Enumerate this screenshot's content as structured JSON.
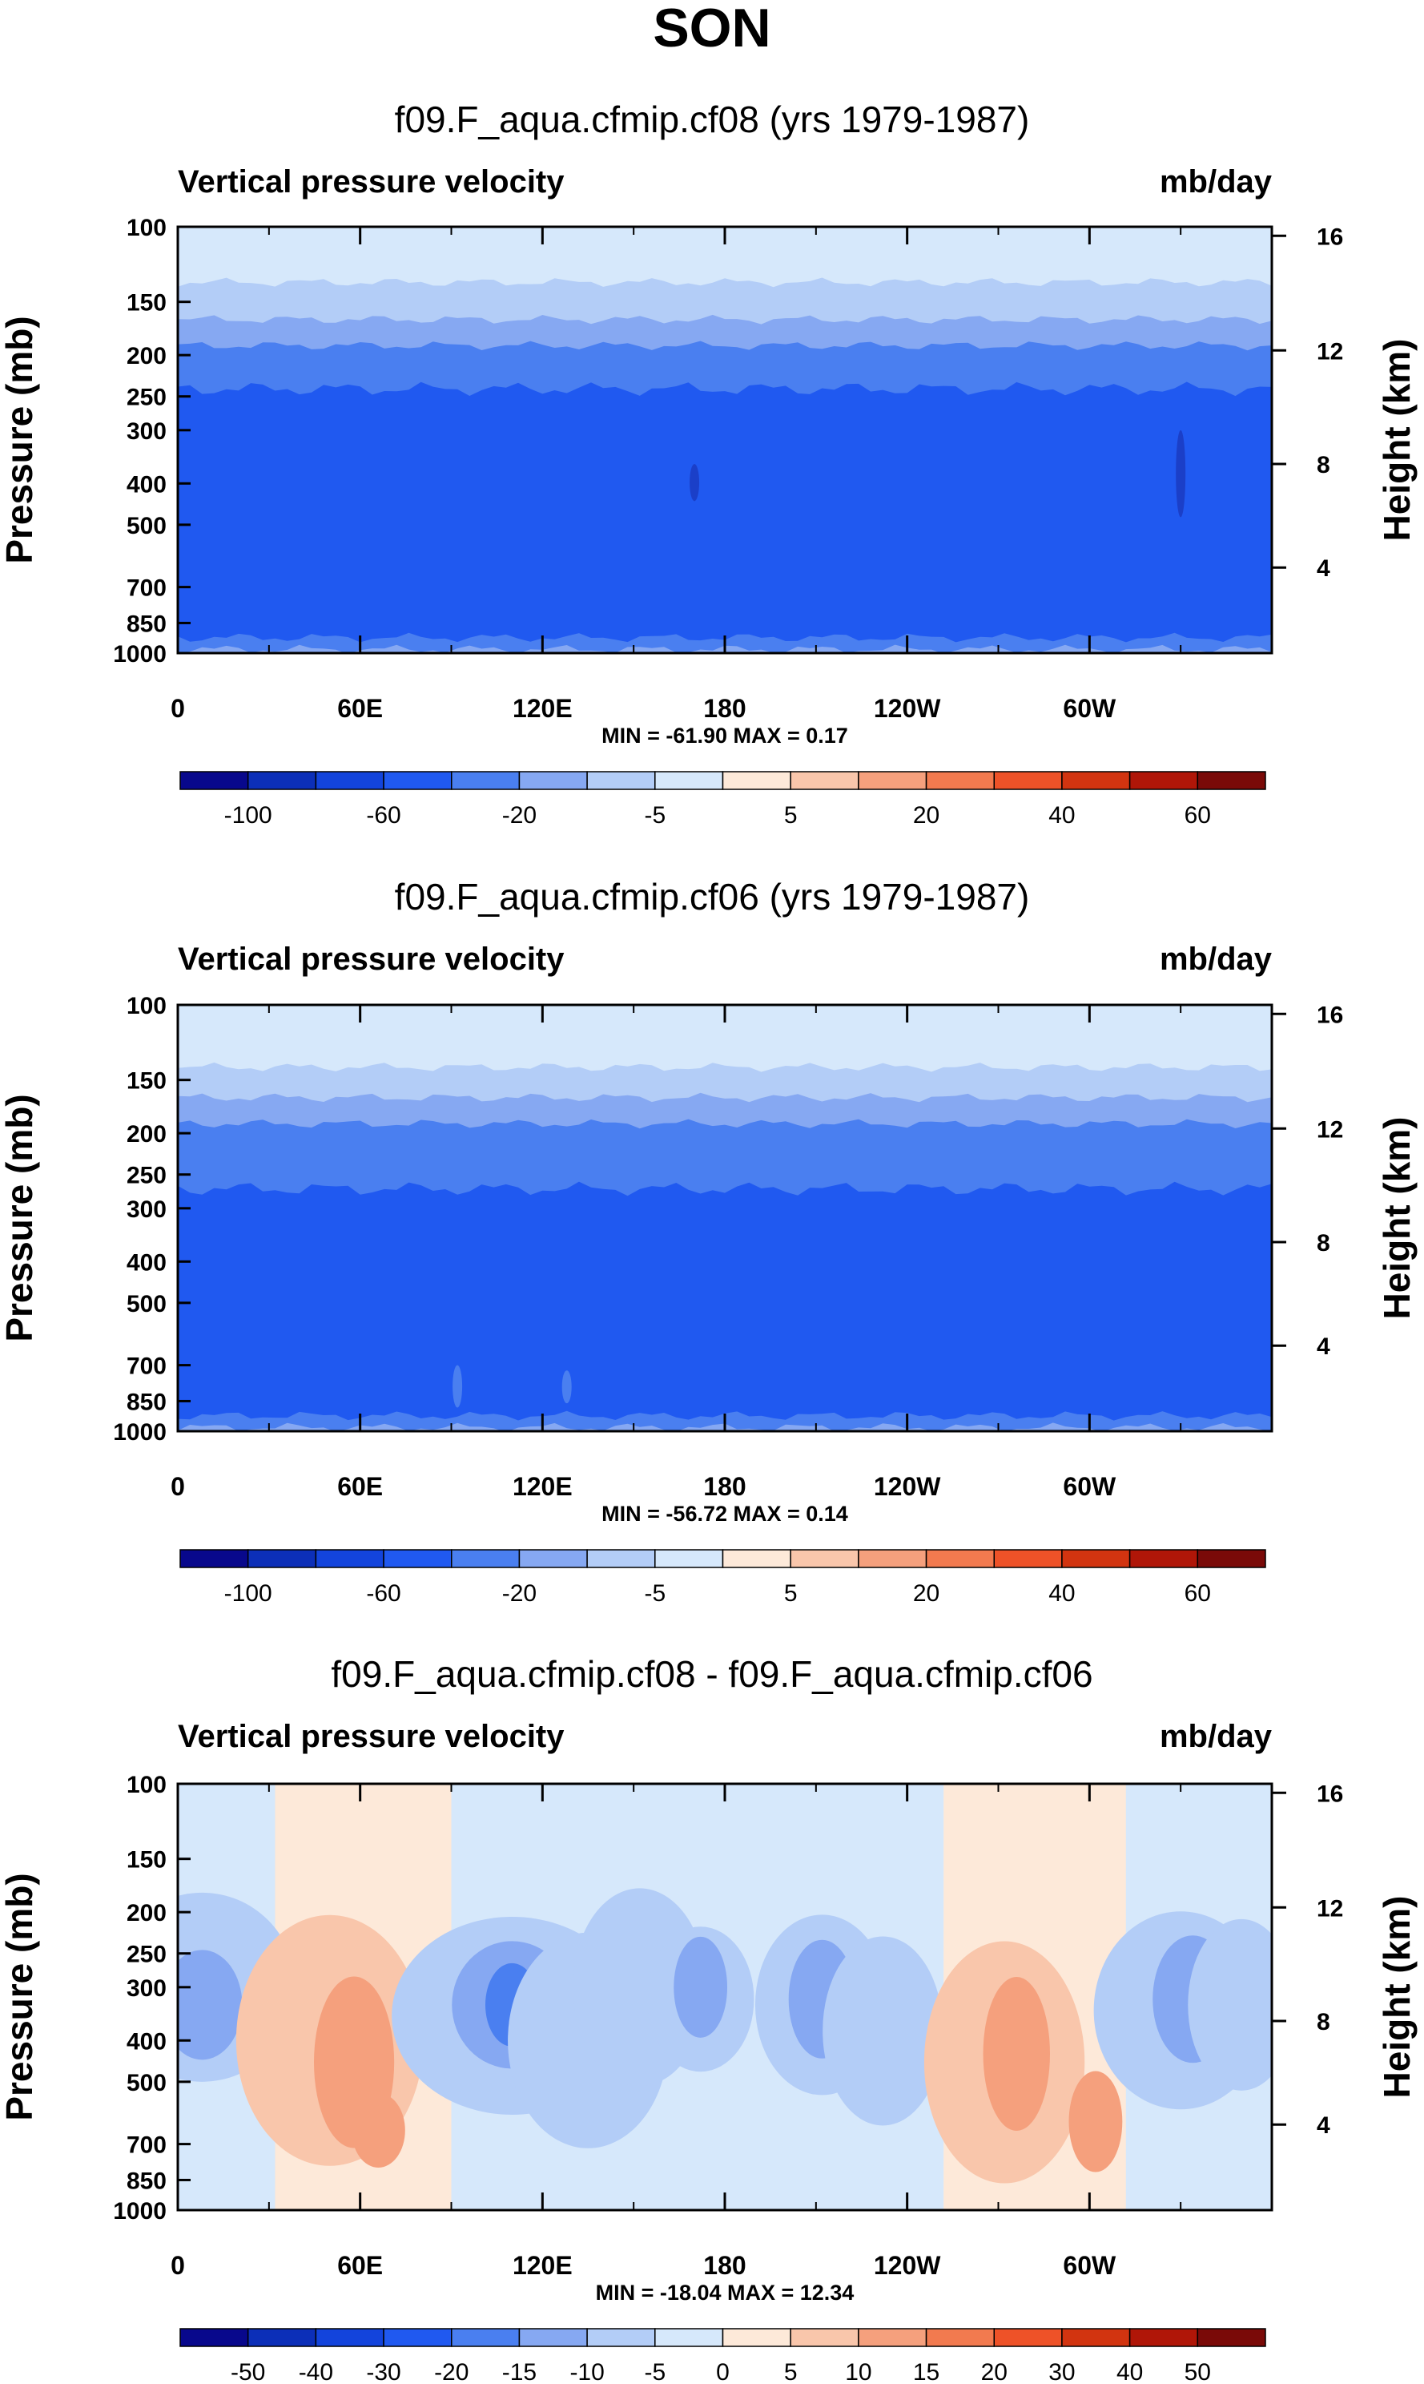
{
  "page_title": "SON",
  "chart_data": [
    {
      "type": "heatmap",
      "title": "f09.F_aqua.cfmip.cf08 (yrs 1979-1987)",
      "left_label": "Vertical pressure velocity",
      "right_label": "mb/day",
      "ylabel": "Pressure (mb)",
      "y2label": "Height (km)",
      "x_ticks": [
        "0",
        "60E",
        "120E",
        "180",
        "120W",
        "60W"
      ],
      "x_tick_values": [
        0,
        60,
        120,
        180,
        240,
        300
      ],
      "xlim": [
        0,
        360
      ],
      "y_ticks": [
        "100",
        "150",
        "200",
        "250",
        "300",
        "400",
        "500",
        "700",
        "850",
        "1000"
      ],
      "y_tick_values": [
        100,
        150,
        200,
        250,
        300,
        400,
        500,
        700,
        850,
        1000
      ],
      "ylim": [
        100,
        1000
      ],
      "y2_ticks": [
        "4",
        "8",
        "12",
        "16"
      ],
      "stats": "MIN = -61.90  MAX =   0.17",
      "colorbar_levels": [
        -100,
        -80,
        -60,
        -40,
        -20,
        -10,
        -5,
        0,
        5,
        10,
        20,
        30,
        40,
        50,
        60
      ],
      "colorbar_labels": [
        "-100",
        "-60",
        "-20",
        "-5",
        "5",
        "20",
        "40",
        "60"
      ],
      "colorbar_colors": [
        "#08088c",
        "#0c2fb8",
        "#1344dc",
        "#2059f0",
        "#4a7ff0",
        "#86a8f2",
        "#b3cdf7",
        "#d6e8fb",
        "#fde9d9",
        "#f9c6ab",
        "#f5a07d",
        "#f27a4f",
        "#ee5228",
        "#d23410",
        "#b01608",
        "#7a0a08"
      ],
      "layers": [
        {
          "p_top": 100,
          "p_bottom": 135,
          "value": "0 to -5"
        },
        {
          "p_top": 135,
          "p_bottom": 165,
          "value": "-5 to -10"
        },
        {
          "p_top": 165,
          "p_bottom": 190,
          "value": "-10 to -20"
        },
        {
          "p_top": 190,
          "p_bottom": 240,
          "value": "-20 to -40"
        },
        {
          "p_top": 240,
          "p_bottom": 920,
          "value": "-40 to -60"
        },
        {
          "p_top": 920,
          "p_bottom": 980,
          "value": "-20 to -40"
        },
        {
          "p_top": 980,
          "p_bottom": 1000,
          "value": "-10 to -20"
        }
      ]
    },
    {
      "type": "heatmap",
      "title": "f09.F_aqua.cfmip.cf06 (yrs 1979-1987)",
      "left_label": "Vertical pressure velocity",
      "right_label": "mb/day",
      "ylabel": "Pressure (mb)",
      "y2label": "Height (km)",
      "x_ticks": [
        "0",
        "60E",
        "120E",
        "180",
        "120W",
        "60W"
      ],
      "x_tick_values": [
        0,
        60,
        120,
        180,
        240,
        300
      ],
      "xlim": [
        0,
        360
      ],
      "y_ticks": [
        "100",
        "150",
        "200",
        "250",
        "300",
        "400",
        "500",
        "700",
        "850",
        "1000"
      ],
      "y_tick_values": [
        100,
        150,
        200,
        250,
        300,
        400,
        500,
        700,
        850,
        1000
      ],
      "ylim": [
        100,
        1000
      ],
      "y2_ticks": [
        "4",
        "8",
        "12",
        "16"
      ],
      "stats": "MIN = -56.72  MAX =   0.14",
      "colorbar_levels": [
        -100,
        -80,
        -60,
        -40,
        -20,
        -10,
        -5,
        0,
        5,
        10,
        20,
        30,
        40,
        50,
        60
      ],
      "colorbar_labels": [
        "-100",
        "-60",
        "-20",
        "-5",
        "5",
        "20",
        "40",
        "60"
      ],
      "colorbar_colors": [
        "#08088c",
        "#0c2fb8",
        "#1344dc",
        "#2059f0",
        "#4a7ff0",
        "#86a8f2",
        "#b3cdf7",
        "#d6e8fb",
        "#fde9d9",
        "#f9c6ab",
        "#f5a07d",
        "#f27a4f",
        "#ee5228",
        "#d23410",
        "#b01608",
        "#7a0a08"
      ],
      "layers": [
        {
          "p_top": 100,
          "p_bottom": 140,
          "value": "0 to -5"
        },
        {
          "p_top": 140,
          "p_bottom": 165,
          "value": "-5 to -10"
        },
        {
          "p_top": 165,
          "p_bottom": 190,
          "value": "-10 to -20"
        },
        {
          "p_top": 190,
          "p_bottom": 270,
          "value": "-20 to -40"
        },
        {
          "p_top": 270,
          "p_bottom": 920,
          "value": "-40 to -60"
        },
        {
          "p_top": 920,
          "p_bottom": 980,
          "value": "-20 to -40"
        },
        {
          "p_top": 980,
          "p_bottom": 1000,
          "value": "-10 to -20"
        }
      ]
    },
    {
      "type": "heatmap",
      "title": "f09.F_aqua.cfmip.cf08 - f09.F_aqua.cfmip.cf06",
      "left_label": "Vertical pressure velocity",
      "right_label": "mb/day",
      "ylabel": "Pressure (mb)",
      "y2label": "Height (km)",
      "x_ticks": [
        "0",
        "60E",
        "120E",
        "180",
        "120W",
        "60W"
      ],
      "x_tick_values": [
        0,
        60,
        120,
        180,
        240,
        300
      ],
      "xlim": [
        0,
        360
      ],
      "y_ticks": [
        "100",
        "150",
        "200",
        "250",
        "300",
        "400",
        "500",
        "700",
        "850",
        "1000"
      ],
      "y_tick_values": [
        100,
        150,
        200,
        250,
        300,
        400,
        500,
        700,
        850,
        1000
      ],
      "ylim": [
        100,
        1000
      ],
      "y2_ticks": [
        "4",
        "8",
        "12",
        "16"
      ],
      "stats": "MIN = -18.04  MAX = 12.34",
      "colorbar_levels": [
        -50,
        -40,
        -30,
        -20,
        -15,
        -10,
        -5,
        0,
        5,
        10,
        15,
        20,
        30,
        40,
        50
      ],
      "colorbar_labels": [
        "-50",
        "-40",
        "-30",
        "-20",
        "-15",
        "-10",
        "-5",
        "0",
        "5",
        "10",
        "15",
        "20",
        "30",
        "40",
        "50"
      ],
      "colorbar_colors": [
        "#08088c",
        "#0c2fb8",
        "#1344dc",
        "#2059f0",
        "#4a7ff0",
        "#86a8f2",
        "#b3cdf7",
        "#d6e8fb",
        "#fde9d9",
        "#f9c6ab",
        "#f5a07d",
        "#f27a4f",
        "#ee5228",
        "#d23410",
        "#b01608",
        "#7a0a08"
      ],
      "columns": [
        {
          "lon_start": 0,
          "lon_end": 32,
          "value": "-5 to -10"
        },
        {
          "lon_start": 32,
          "lon_end": 90,
          "value": "0 to 5"
        },
        {
          "lon_start": 90,
          "lon_end": 180,
          "value": "-5 to -10"
        },
        {
          "lon_start": 180,
          "lon_end": 215,
          "value": "-5 to 0"
        },
        {
          "lon_start": 215,
          "lon_end": 252,
          "value": "-5 to -10"
        },
        {
          "lon_start": 252,
          "lon_end": 312,
          "value": "0 to 5"
        },
        {
          "lon_start": 312,
          "lon_end": 360,
          "value": "-5 to -10"
        }
      ]
    }
  ]
}
